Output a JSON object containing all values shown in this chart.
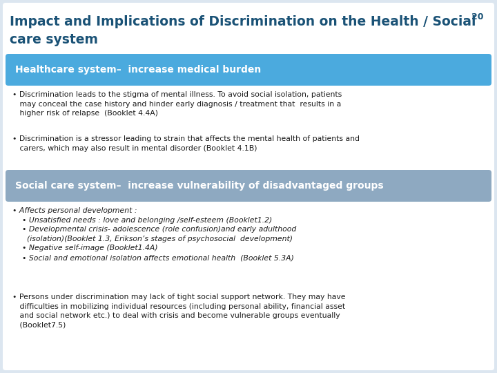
{
  "page_number": "20",
  "title_line1": "Impact and Implications of Discrimination on the Health / Social",
  "title_line2": "care system",
  "title_color": "#1a5276",
  "title_fontsize": 13.5,
  "bg_color": "#dce6f0",
  "header_bg1": "#4baade",
  "header_bg2": "#8ea9c1",
  "header_text1": "Healthcare system–  increase medical burden",
  "header_text2": "Social care system–  increase vulnerability of disadvantaged groups",
  "header_fontsize": 10,
  "header_text_color": "#ffffff",
  "bullet_fontsize": 7.8,
  "bullet_color": "#1a1a1a",
  "inner_bg": "#ffffff",
  "pagenum_color": "#1a5276",
  "pagenum_fontsize": 9
}
